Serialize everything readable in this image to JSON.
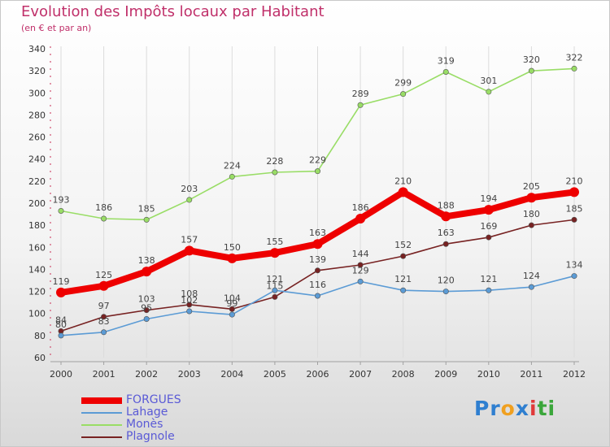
{
  "header": {
    "title": "Evolution des Impôts locaux par Habitant",
    "subtitle": "(en € et par an)"
  },
  "chart_data": {
    "type": "line",
    "title": "Evolution des Impôts locaux par Habitant",
    "subtitle": "(en € et par an)",
    "xlabel": "",
    "ylabel": "",
    "x": [
      "2000",
      "2001",
      "2002",
      "2003",
      "2004",
      "2005",
      "2006",
      "2007",
      "2008",
      "2009",
      "2010",
      "2011",
      "2012"
    ],
    "ylim": [
      60,
      340
    ],
    "yticks": [
      60,
      80,
      100,
      120,
      140,
      160,
      180,
      200,
      220,
      240,
      260,
      280,
      300,
      320,
      340
    ],
    "grid": "vertical",
    "legend_position": "bottom-left",
    "series": [
      {
        "name": "FORGUES",
        "color": "#ee0000",
        "values": [
          119,
          125,
          138,
          157,
          150,
          155,
          163,
          186,
          210,
          188,
          194,
          205,
          210
        ]
      },
      {
        "name": "Lahage",
        "color": "#5b9bd5",
        "values": [
          80,
          83,
          95,
          102,
          99,
          121,
          116,
          129,
          121,
          120,
          121,
          124,
          134
        ]
      },
      {
        "name": "Monès",
        "color": "#99dd66",
        "values": [
          193,
          186,
          185,
          203,
          224,
          228,
          229,
          289,
          299,
          319,
          301,
          320,
          322
        ]
      },
      {
        "name": "Plagnole",
        "color": "#772222",
        "values": [
          84,
          97,
          103,
          108,
          104,
          115,
          139,
          144,
          152,
          163,
          169,
          180,
          185
        ]
      }
    ]
  },
  "brand": {
    "letters": [
      "P",
      "r",
      "o",
      "x",
      "i",
      "t",
      "i"
    ],
    "colors": [
      "#2f7fd0",
      "#2f7fd0",
      "#f0a020",
      "#2f7fd0",
      "#e03a3a",
      "#3aa63a",
      "#3aa63a"
    ]
  }
}
